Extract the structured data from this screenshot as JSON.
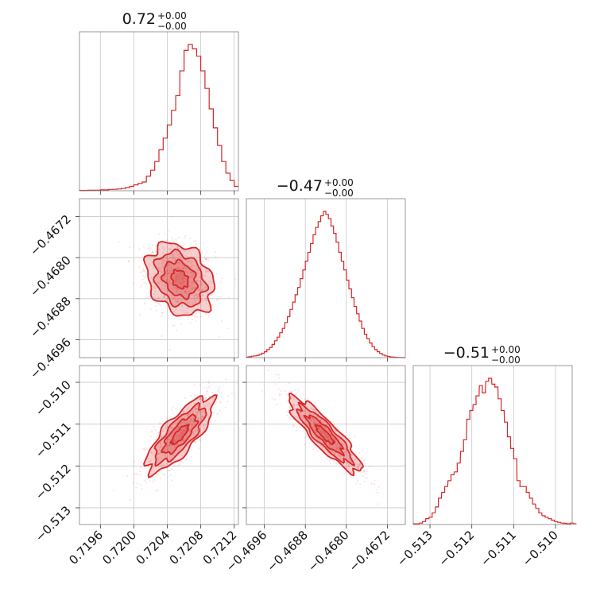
{
  "chart_data": {
    "type": "corner",
    "color": "#d62728",
    "grid": true,
    "parameters": [
      {
        "id": "p0",
        "title": {
          "value": "0.72",
          "upper": "+0.00",
          "lower": "−0.00"
        },
        "range": [
          0.71935,
          0.72125
        ],
        "ticks": [
          0.7196,
          0.72,
          0.7204,
          0.7208,
          0.7212
        ],
        "tick_labels": [
          "0.7196",
          "0.7200",
          "0.7204",
          "0.7208",
          "0.7212"
        ],
        "mean": 0.72055,
        "std": 0.0002,
        "histogram": [
          [
            0.71935,
            0.002
          ],
          [
            0.7194,
            0.002
          ],
          [
            0.71945,
            0.003
          ],
          [
            0.7195,
            0.004
          ],
          [
            0.71955,
            0.003
          ],
          [
            0.7196,
            0.006
          ],
          [
            0.71965,
            0.006
          ],
          [
            0.7197,
            0.009
          ],
          [
            0.71975,
            0.01
          ],
          [
            0.7198,
            0.012
          ],
          [
            0.71985,
            0.015
          ],
          [
            0.7199,
            0.022
          ],
          [
            0.71995,
            0.03
          ],
          [
            0.72,
            0.04
          ],
          [
            0.72005,
            0.05
          ],
          [
            0.7201,
            0.06
          ],
          [
            0.72015,
            0.1
          ],
          [
            0.7202,
            0.14
          ],
          [
            0.72025,
            0.2
          ],
          [
            0.7203,
            0.28
          ],
          [
            0.72035,
            0.36
          ],
          [
            0.7204,
            0.45
          ],
          [
            0.72045,
            0.55
          ],
          [
            0.7205,
            0.65
          ],
          [
            0.72055,
            0.82
          ],
          [
            0.7206,
            0.96
          ],
          [
            0.72065,
            1.0
          ],
          [
            0.7207,
            0.97
          ],
          [
            0.72075,
            0.92
          ],
          [
            0.7208,
            0.82
          ],
          [
            0.72085,
            0.7
          ],
          [
            0.7209,
            0.56
          ],
          [
            0.72095,
            0.43
          ],
          [
            0.721,
            0.31
          ],
          [
            0.72105,
            0.2
          ],
          [
            0.7211,
            0.12
          ],
          [
            0.72115,
            0.07
          ],
          [
            0.7212,
            0.03
          ]
        ]
      },
      {
        "id": "p1",
        "title": {
          "value": "−0.47",
          "upper": "+0.00",
          "lower": "−0.00"
        },
        "range": [
          -0.46995,
          -0.46685
        ],
        "ticks": [
          -0.4696,
          -0.4688,
          -0.468,
          -0.4672
        ],
        "tick_labels": [
          "−0.4696",
          "−0.4688",
          "−0.4680",
          "−0.4672"
        ],
        "mean": -0.46842,
        "std": 0.00035,
        "histogram": [
          [
            -0.46995,
            0.003
          ],
          [
            -0.4699,
            0.006
          ],
          [
            -0.46985,
            0.01
          ],
          [
            -0.4698,
            0.012
          ],
          [
            -0.46975,
            0.016
          ],
          [
            -0.4697,
            0.022
          ],
          [
            -0.46965,
            0.03
          ],
          [
            -0.4696,
            0.04
          ],
          [
            -0.46955,
            0.055
          ],
          [
            -0.4695,
            0.07
          ],
          [
            -0.46945,
            0.09
          ],
          [
            -0.4694,
            0.115
          ],
          [
            -0.46935,
            0.14
          ],
          [
            -0.4693,
            0.17
          ],
          [
            -0.46925,
            0.2
          ],
          [
            -0.4692,
            0.24
          ],
          [
            -0.46915,
            0.28
          ],
          [
            -0.4691,
            0.33
          ],
          [
            -0.46905,
            0.38
          ],
          [
            -0.469,
            0.43
          ],
          [
            -0.46895,
            0.48
          ],
          [
            -0.4689,
            0.54
          ],
          [
            -0.46885,
            0.6
          ],
          [
            -0.4688,
            0.66
          ],
          [
            -0.46875,
            0.72
          ],
          [
            -0.4687,
            0.78
          ],
          [
            -0.46865,
            0.84
          ],
          [
            -0.4686,
            0.89
          ],
          [
            -0.46855,
            0.93
          ],
          [
            -0.4685,
            0.97
          ],
          [
            -0.46845,
            1.0
          ],
          [
            -0.4684,
            0.98
          ],
          [
            -0.46835,
            0.95
          ],
          [
            -0.4683,
            0.9
          ],
          [
            -0.46825,
            0.85
          ],
          [
            -0.4682,
            0.79
          ],
          [
            -0.46815,
            0.72
          ],
          [
            -0.4681,
            0.66
          ],
          [
            -0.46805,
            0.6
          ],
          [
            -0.468,
            0.53
          ],
          [
            -0.46795,
            0.47
          ],
          [
            -0.4679,
            0.41
          ],
          [
            -0.46785,
            0.35
          ],
          [
            -0.4678,
            0.3
          ],
          [
            -0.46775,
            0.25
          ],
          [
            -0.4677,
            0.2
          ],
          [
            -0.46765,
            0.16
          ],
          [
            -0.4676,
            0.13
          ],
          [
            -0.46755,
            0.1
          ],
          [
            -0.4675,
            0.075
          ],
          [
            -0.46745,
            0.055
          ],
          [
            -0.4674,
            0.04
          ],
          [
            -0.46735,
            0.028
          ],
          [
            -0.4673,
            0.018
          ],
          [
            -0.46725,
            0.012
          ],
          [
            -0.4672,
            0.008
          ],
          [
            -0.46715,
            0.005
          ],
          [
            -0.4671,
            0.003
          ],
          [
            -0.46705,
            0.002
          ],
          [
            -0.467,
            0.001
          ],
          [
            -0.46695,
            0.001
          ],
          [
            -0.4669,
            0.0
          ]
        ]
      },
      {
        "id": "p2",
        "title": {
          "value": "−0.51",
          "upper": "+0.00",
          "lower": "−0.00"
        },
        "range": [
          -0.5134,
          -0.5096
        ],
        "ticks": [
          -0.513,
          -0.512,
          -0.511,
          -0.51
        ],
        "tick_labels": [
          "−0.513",
          "−0.512",
          "−0.511",
          "−0.510"
        ],
        "mean": -0.51125,
        "std": 0.00045,
        "histogram": [
          [
            -0.5134,
            0.005
          ],
          [
            -0.51333,
            0.005
          ],
          [
            -0.51325,
            0.01
          ],
          [
            -0.51318,
            0.02
          ],
          [
            -0.5131,
            0.04
          ],
          [
            -0.51302,
            0.05
          ],
          [
            -0.51295,
            0.08
          ],
          [
            -0.51287,
            0.12
          ],
          [
            -0.5128,
            0.18
          ],
          [
            -0.51272,
            0.22
          ],
          [
            -0.51265,
            0.26
          ],
          [
            -0.51257,
            0.3
          ],
          [
            -0.5125,
            0.34
          ],
          [
            -0.51242,
            0.36
          ],
          [
            -0.51235,
            0.42
          ],
          [
            -0.51227,
            0.5
          ],
          [
            -0.5122,
            0.58
          ],
          [
            -0.51212,
            0.72
          ],
          [
            -0.51205,
            0.78
          ],
          [
            -0.51197,
            0.82
          ],
          [
            -0.5119,
            0.88
          ],
          [
            -0.51182,
            0.95
          ],
          [
            -0.51175,
            0.9
          ],
          [
            -0.51167,
            0.98
          ],
          [
            -0.5116,
            1.0
          ],
          [
            -0.51152,
            0.96
          ],
          [
            -0.51145,
            0.94
          ],
          [
            -0.51137,
            0.86
          ],
          [
            -0.5113,
            0.78
          ],
          [
            -0.51122,
            0.7
          ],
          [
            -0.51115,
            0.6
          ],
          [
            -0.51107,
            0.52
          ],
          [
            -0.511,
            0.45
          ],
          [
            -0.51092,
            0.3
          ],
          [
            -0.51085,
            0.26
          ],
          [
            -0.51077,
            0.26
          ],
          [
            -0.5107,
            0.22
          ],
          [
            -0.51062,
            0.18
          ],
          [
            -0.51055,
            0.14
          ],
          [
            -0.51047,
            0.11
          ],
          [
            -0.5104,
            0.08
          ],
          [
            -0.51032,
            0.06
          ],
          [
            -0.51025,
            0.05
          ],
          [
            -0.51017,
            0.04
          ],
          [
            -0.5101,
            0.03
          ],
          [
            -0.51002,
            0.02
          ],
          [
            -0.50995,
            0.015
          ],
          [
            -0.50987,
            0.01
          ],
          [
            -0.5098,
            0.008
          ],
          [
            -0.50972,
            0.005
          ],
          [
            -0.50965,
            0.01
          ],
          [
            -0.50957,
            0.005
          ]
        ]
      }
    ],
    "correlations": [
      {
        "x": "p0",
        "y": "p1",
        "rho": -0.25
      },
      {
        "x": "p0",
        "y": "p2",
        "rho": 0.78
      },
      {
        "x": "p1",
        "y": "p2",
        "rho": -0.88
      }
    ],
    "contour_levels_sigma": [
      0.5,
      1.0,
      1.5,
      2.0
    ]
  }
}
